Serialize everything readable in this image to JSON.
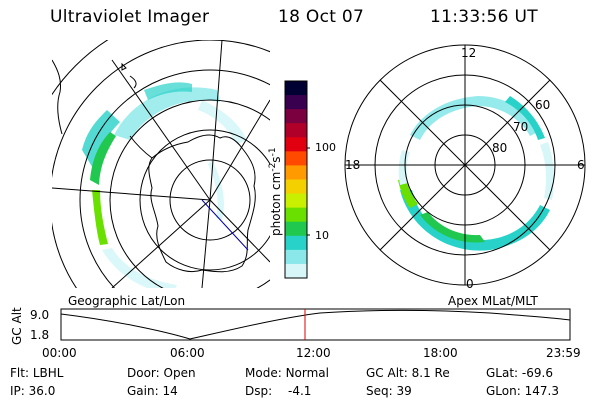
{
  "header": {
    "instrument": "Ultraviolet Imager",
    "date": "18 Oct 07",
    "time": "11:33:56 UT"
  },
  "colorbar": {
    "unit_label": "photon cm",
    "unit_exp1": "-2",
    "unit_s": "s",
    "unit_exp2": "-1",
    "ticks": [
      "100",
      "10"
    ],
    "colors": [
      "#000033",
      "#3a0050",
      "#7a0040",
      "#b0002a",
      "#e00010",
      "#ff4a00",
      "#ff9a00",
      "#f4d000",
      "#c8f000",
      "#6ae000",
      "#20c850",
      "#28d2c8",
      "#8ae8ea",
      "#d6f6f8"
    ]
  },
  "panels": {
    "left_label": "Geographic Lat/Lon",
    "right_label": "Apex MLat/MLT"
  },
  "polar": {
    "mlt_labels": {
      "top": "12",
      "left": "18",
      "right": "6",
      "bottom": "0"
    },
    "lat_labels": [
      "60",
      "70",
      "80"
    ]
  },
  "altitude_plot": {
    "ylabel": "GC Alt",
    "yticks": [
      "9.0",
      "1.8"
    ],
    "xticks": [
      "00:00",
      "06:00",
      "12:00",
      "18:00",
      "23:59"
    ],
    "marker_color": "#e00000"
  },
  "status": {
    "row1": [
      {
        "label": "Flt:",
        "value": "LBHL"
      },
      {
        "label": "Door:",
        "value": "Open"
      },
      {
        "label": "Mode:",
        "value": "Normal"
      },
      {
        "label": "GC Alt:",
        "value": "8.1 Re"
      },
      {
        "label": "GLat:",
        "value": "-69.6"
      }
    ],
    "row2": [
      {
        "label": "IP:",
        "value": "36.0"
      },
      {
        "label": "Gain:",
        "value": "14"
      },
      {
        "label": "Dsp:",
        "value": "-4.1"
      },
      {
        "label": "Seq:",
        "value": "39"
      },
      {
        "label": "GLon:",
        "value": "147.3"
      }
    ]
  }
}
